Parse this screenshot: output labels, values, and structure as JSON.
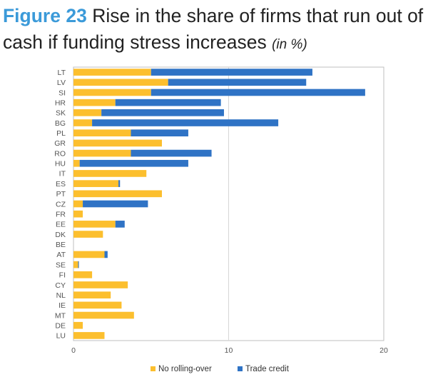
{
  "figure": {
    "label": "Figure 23",
    "title": "Rise in the share of firms that run out of cash if funding stress increases",
    "unit": "(in %)"
  },
  "colors": {
    "no_rolling_over": "#fcbf2e",
    "trade_credit": "#2f73c5",
    "gridline": "#d6d6d6",
    "axis": "#bfbfbf"
  },
  "chart_data": {
    "type": "bar",
    "orientation": "horizontal",
    "stacked": true,
    "categories": [
      "LT",
      "LV",
      "SI",
      "HR",
      "SK",
      "BG",
      "PL",
      "GR",
      "RO",
      "HU",
      "IT",
      "ES",
      "PT",
      "CZ",
      "FR",
      "EE",
      "DK",
      "BE",
      "AT",
      "SE",
      "FI",
      "CY",
      "NL",
      "IE",
      "MT",
      "DE",
      "LU"
    ],
    "series": [
      {
        "name": "No rolling-over",
        "values": [
          5.0,
          6.1,
          5.0,
          2.7,
          1.8,
          1.2,
          3.7,
          5.7,
          3.7,
          0.4,
          4.7,
          2.9,
          5.7,
          0.6,
          0.6,
          2.7,
          1.9,
          0.0,
          2.0,
          0.3,
          1.2,
          3.5,
          2.4,
          3.1,
          3.9,
          0.6,
          2.0
        ]
      },
      {
        "name": "Trade credit",
        "values": [
          10.4,
          8.9,
          13.8,
          6.8,
          7.9,
          12.0,
          3.7,
          0.0,
          5.2,
          7.0,
          0.0,
          0.1,
          0.0,
          4.2,
          0.0,
          0.6,
          0.0,
          0.0,
          0.2,
          0.05,
          0.0,
          0.0,
          0.0,
          0.0,
          0.0,
          0.0,
          0.0
        ]
      }
    ],
    "xlim": [
      0,
      20
    ],
    "xticks": [
      "0",
      "10",
      "20"
    ],
    "grid": "vertical",
    "legend_position": "bottom",
    "xlabel": "",
    "ylabel": ""
  }
}
